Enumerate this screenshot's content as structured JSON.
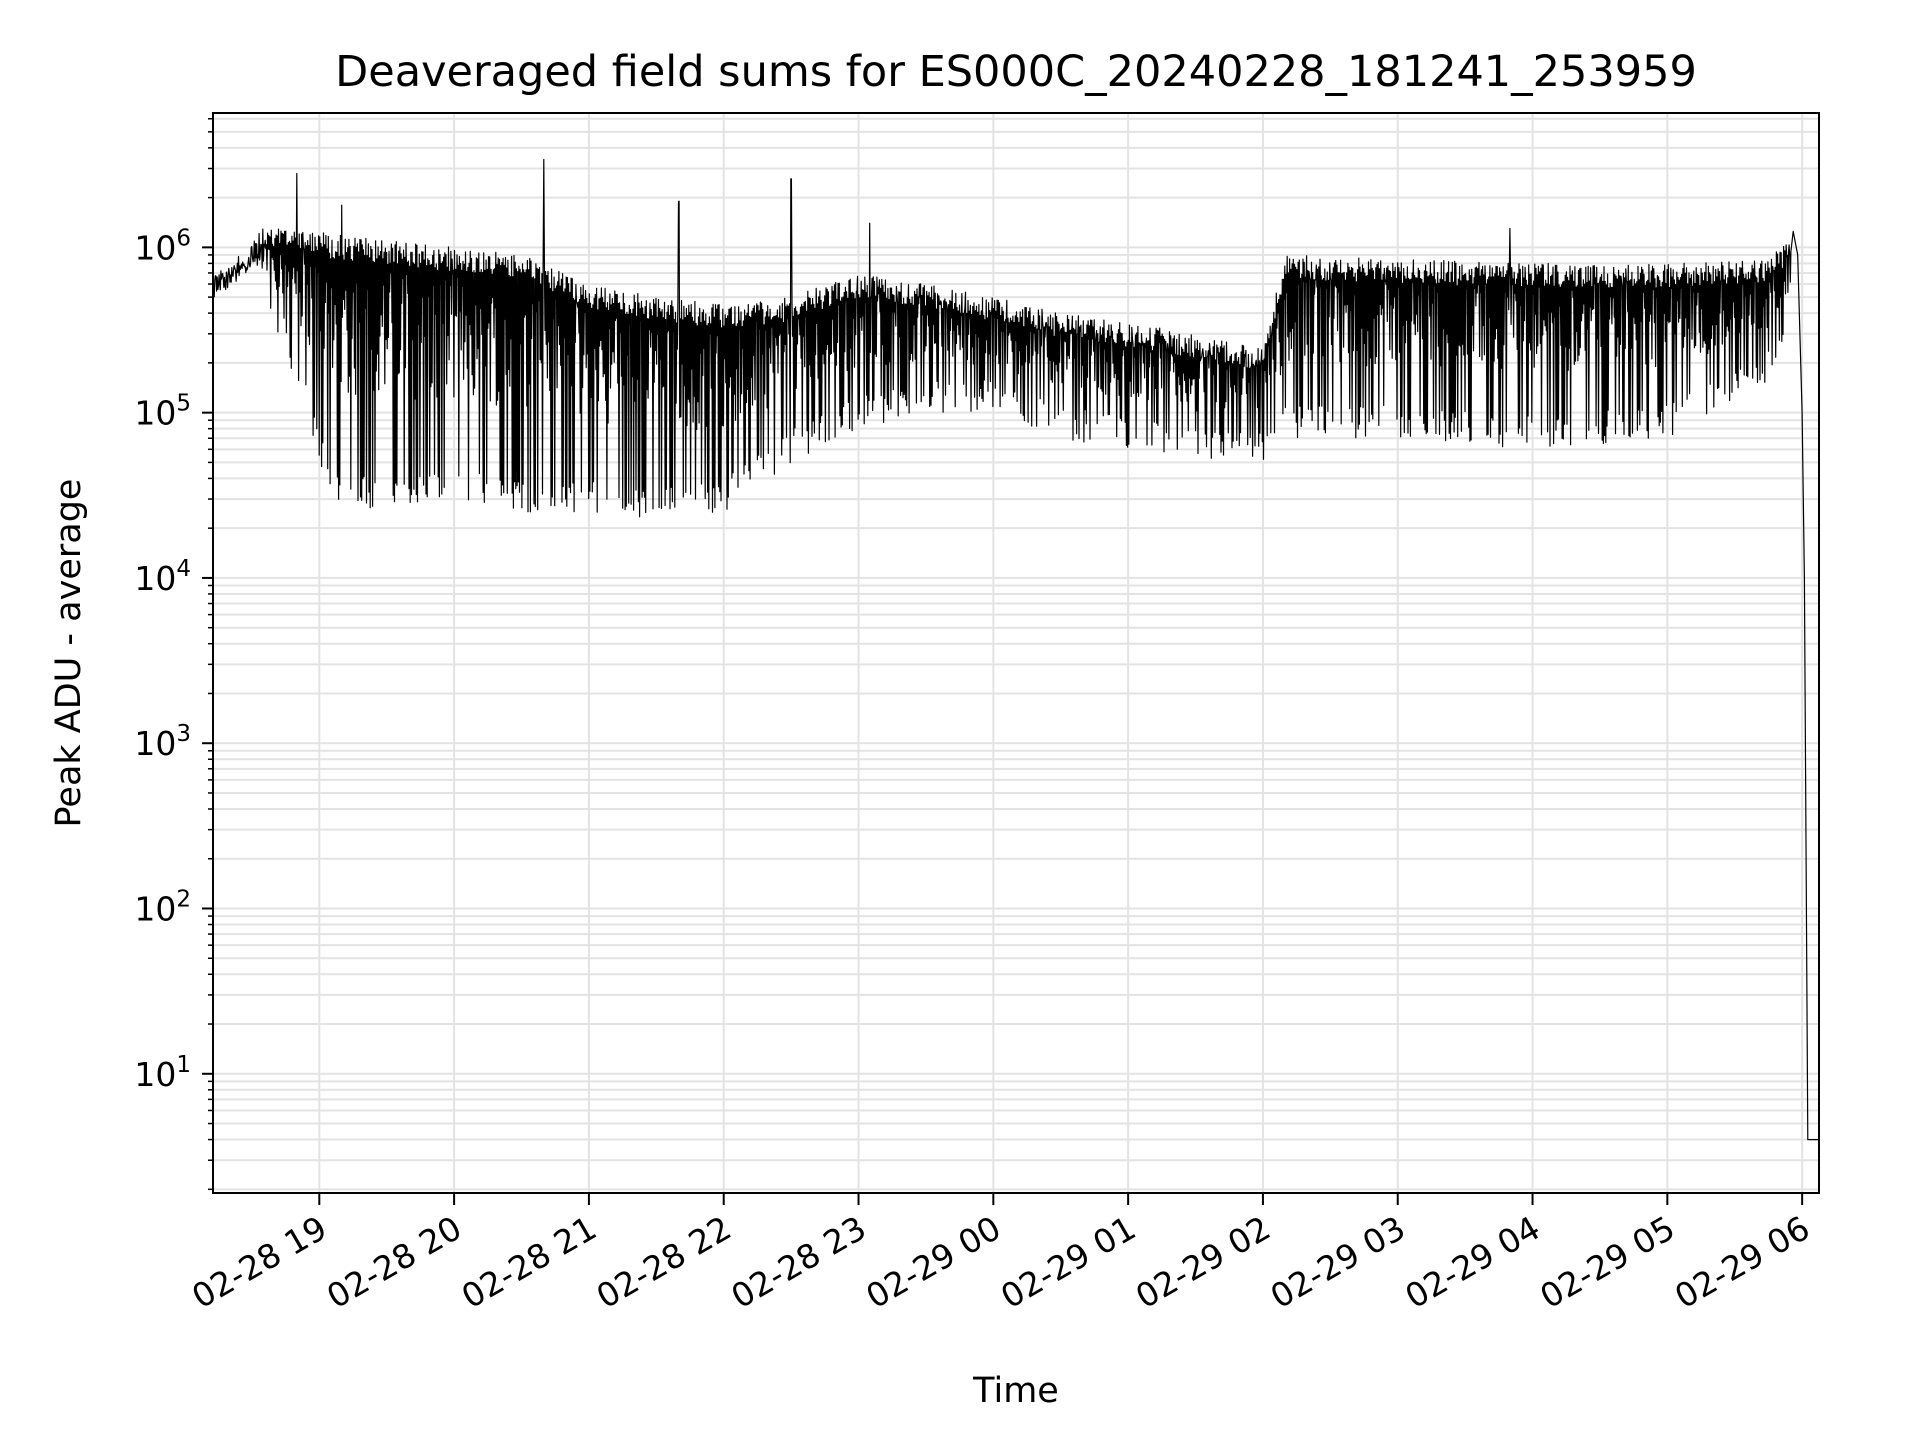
{
  "chart_data": {
    "type": "line",
    "title": "Deaveraged field sums for ES000C_20240228_181241_253959",
    "xlabel": "Time",
    "ylabel": "Peak ADU - average",
    "yscale": "log",
    "grid": true,
    "ylim": [
      1.9,
      6500000
    ],
    "xlim": [
      "2024-02-28 18:12:41",
      "2024-02-29 06:07:30"
    ],
    "xticks": [
      {
        "label": "02-28 19",
        "value": "2024-02-28 19:00:00"
      },
      {
        "label": "02-28 20",
        "value": "2024-02-28 20:00:00"
      },
      {
        "label": "02-28 21",
        "value": "2024-02-28 21:00:00"
      },
      {
        "label": "02-28 22",
        "value": "2024-02-28 22:00:00"
      },
      {
        "label": "02-28 23",
        "value": "2024-02-28 23:00:00"
      },
      {
        "label": "02-29 00",
        "value": "2024-02-29 00:00:00"
      },
      {
        "label": "02-29 01",
        "value": "2024-02-29 01:00:00"
      },
      {
        "label": "02-29 02",
        "value": "2024-02-29 02:00:00"
      },
      {
        "label": "02-29 03",
        "value": "2024-02-29 03:00:00"
      },
      {
        "label": "02-29 04",
        "value": "2024-02-29 04:00:00"
      },
      {
        "label": "02-29 05",
        "value": "2024-02-29 05:00:00"
      },
      {
        "label": "02-29 06",
        "value": "2024-02-29 06:00:00"
      }
    ],
    "yticks": [
      {
        "base": "10",
        "exp": "1",
        "value": 10
      },
      {
        "base": "10",
        "exp": "2",
        "value": 100
      },
      {
        "base": "10",
        "exp": "3",
        "value": 1000
      },
      {
        "base": "10",
        "exp": "4",
        "value": 10000
      },
      {
        "base": "10",
        "exp": "5",
        "value": 100000
      },
      {
        "base": "10",
        "exp": "6",
        "value": 1000000
      }
    ],
    "series": [
      {
        "color": "#000000",
        "description_note": "",
        "envelope": [
          {
            "time": "2024-02-28 18:12:41",
            "high": 700000,
            "low": 450000
          },
          {
            "time": "2024-02-28 18:25:00",
            "high": 900000,
            "low": 600000
          },
          {
            "time": "2024-02-28 18:35:00",
            "high": 1300000,
            "low": 500000
          },
          {
            "time": "2024-02-28 18:50:00",
            "high": 1400000,
            "low": 150000
          },
          {
            "time": "2024-02-28 19:05:00",
            "high": 1200000,
            "low": 30000
          },
          {
            "time": "2024-02-28 19:30:00",
            "high": 1100000,
            "low": 25000
          },
          {
            "time": "2024-02-28 20:00:00",
            "high": 1000000,
            "low": 30000
          },
          {
            "time": "2024-02-28 20:30:00",
            "high": 900000,
            "low": 25000
          },
          {
            "time": "2024-02-28 21:00:00",
            "high": 600000,
            "low": 25000
          },
          {
            "time": "2024-02-28 21:30:00",
            "high": 500000,
            "low": 22000
          },
          {
            "time": "2024-02-28 22:00:00",
            "high": 450000,
            "low": 25000
          },
          {
            "time": "2024-02-28 22:30:00",
            "high": 500000,
            "low": 50000
          },
          {
            "time": "2024-02-28 23:00:00",
            "high": 700000,
            "low": 80000
          },
          {
            "time": "2024-02-28 23:30:00",
            "high": 600000,
            "low": 100000
          },
          {
            "time": "2024-02-29 00:00:00",
            "high": 500000,
            "low": 100000
          },
          {
            "time": "2024-02-29 00:30:00",
            "high": 400000,
            "low": 70000
          },
          {
            "time": "2024-02-29 01:00:00",
            "high": 350000,
            "low": 60000
          },
          {
            "time": "2024-02-29 01:30:00",
            "high": 300000,
            "low": 50000
          },
          {
            "time": "2024-02-29 02:00:00",
            "high": 250000,
            "low": 50000
          },
          {
            "time": "2024-02-29 02:10:00",
            "high": 900000,
            "low": 70000
          },
          {
            "time": "2024-02-29 03:00:00",
            "high": 850000,
            "low": 70000
          },
          {
            "time": "2024-02-29 04:00:00",
            "high": 800000,
            "low": 60000
          },
          {
            "time": "2024-02-29 05:00:00",
            "high": 800000,
            "low": 70000
          },
          {
            "time": "2024-02-29 05:45:00",
            "high": 850000,
            "low": 150000
          },
          {
            "time": "2024-02-29 05:55:00",
            "high": 1200000,
            "low": 400000
          }
        ],
        "spikes": [
          {
            "time": "2024-02-28 18:50:00",
            "value": 2800000
          },
          {
            "time": "2024-02-28 19:10:00",
            "value": 1800000
          },
          {
            "time": "2024-02-28 20:40:00",
            "value": 3400000
          },
          {
            "time": "2024-02-28 21:40:00",
            "value": 1900000
          },
          {
            "time": "2024-02-28 22:30:00",
            "value": 2600000
          },
          {
            "time": "2024-02-28 23:05:00",
            "value": 1400000
          },
          {
            "time": "2024-02-29 03:50:00",
            "value": 1300000
          }
        ],
        "tail": [
          {
            "time": "2024-02-29 05:56:00",
            "value": 1250000
          },
          {
            "time": "2024-02-29 05:58:00",
            "value": 900000
          },
          {
            "time": "2024-02-29 06:00:00",
            "value": 100000
          },
          {
            "time": "2024-02-29 06:01:00",
            "value": 10000
          },
          {
            "time": "2024-02-29 06:02:30",
            "value": 4
          },
          {
            "time": "2024-02-29 06:07:30",
            "value": 4
          }
        ]
      }
    ]
  }
}
